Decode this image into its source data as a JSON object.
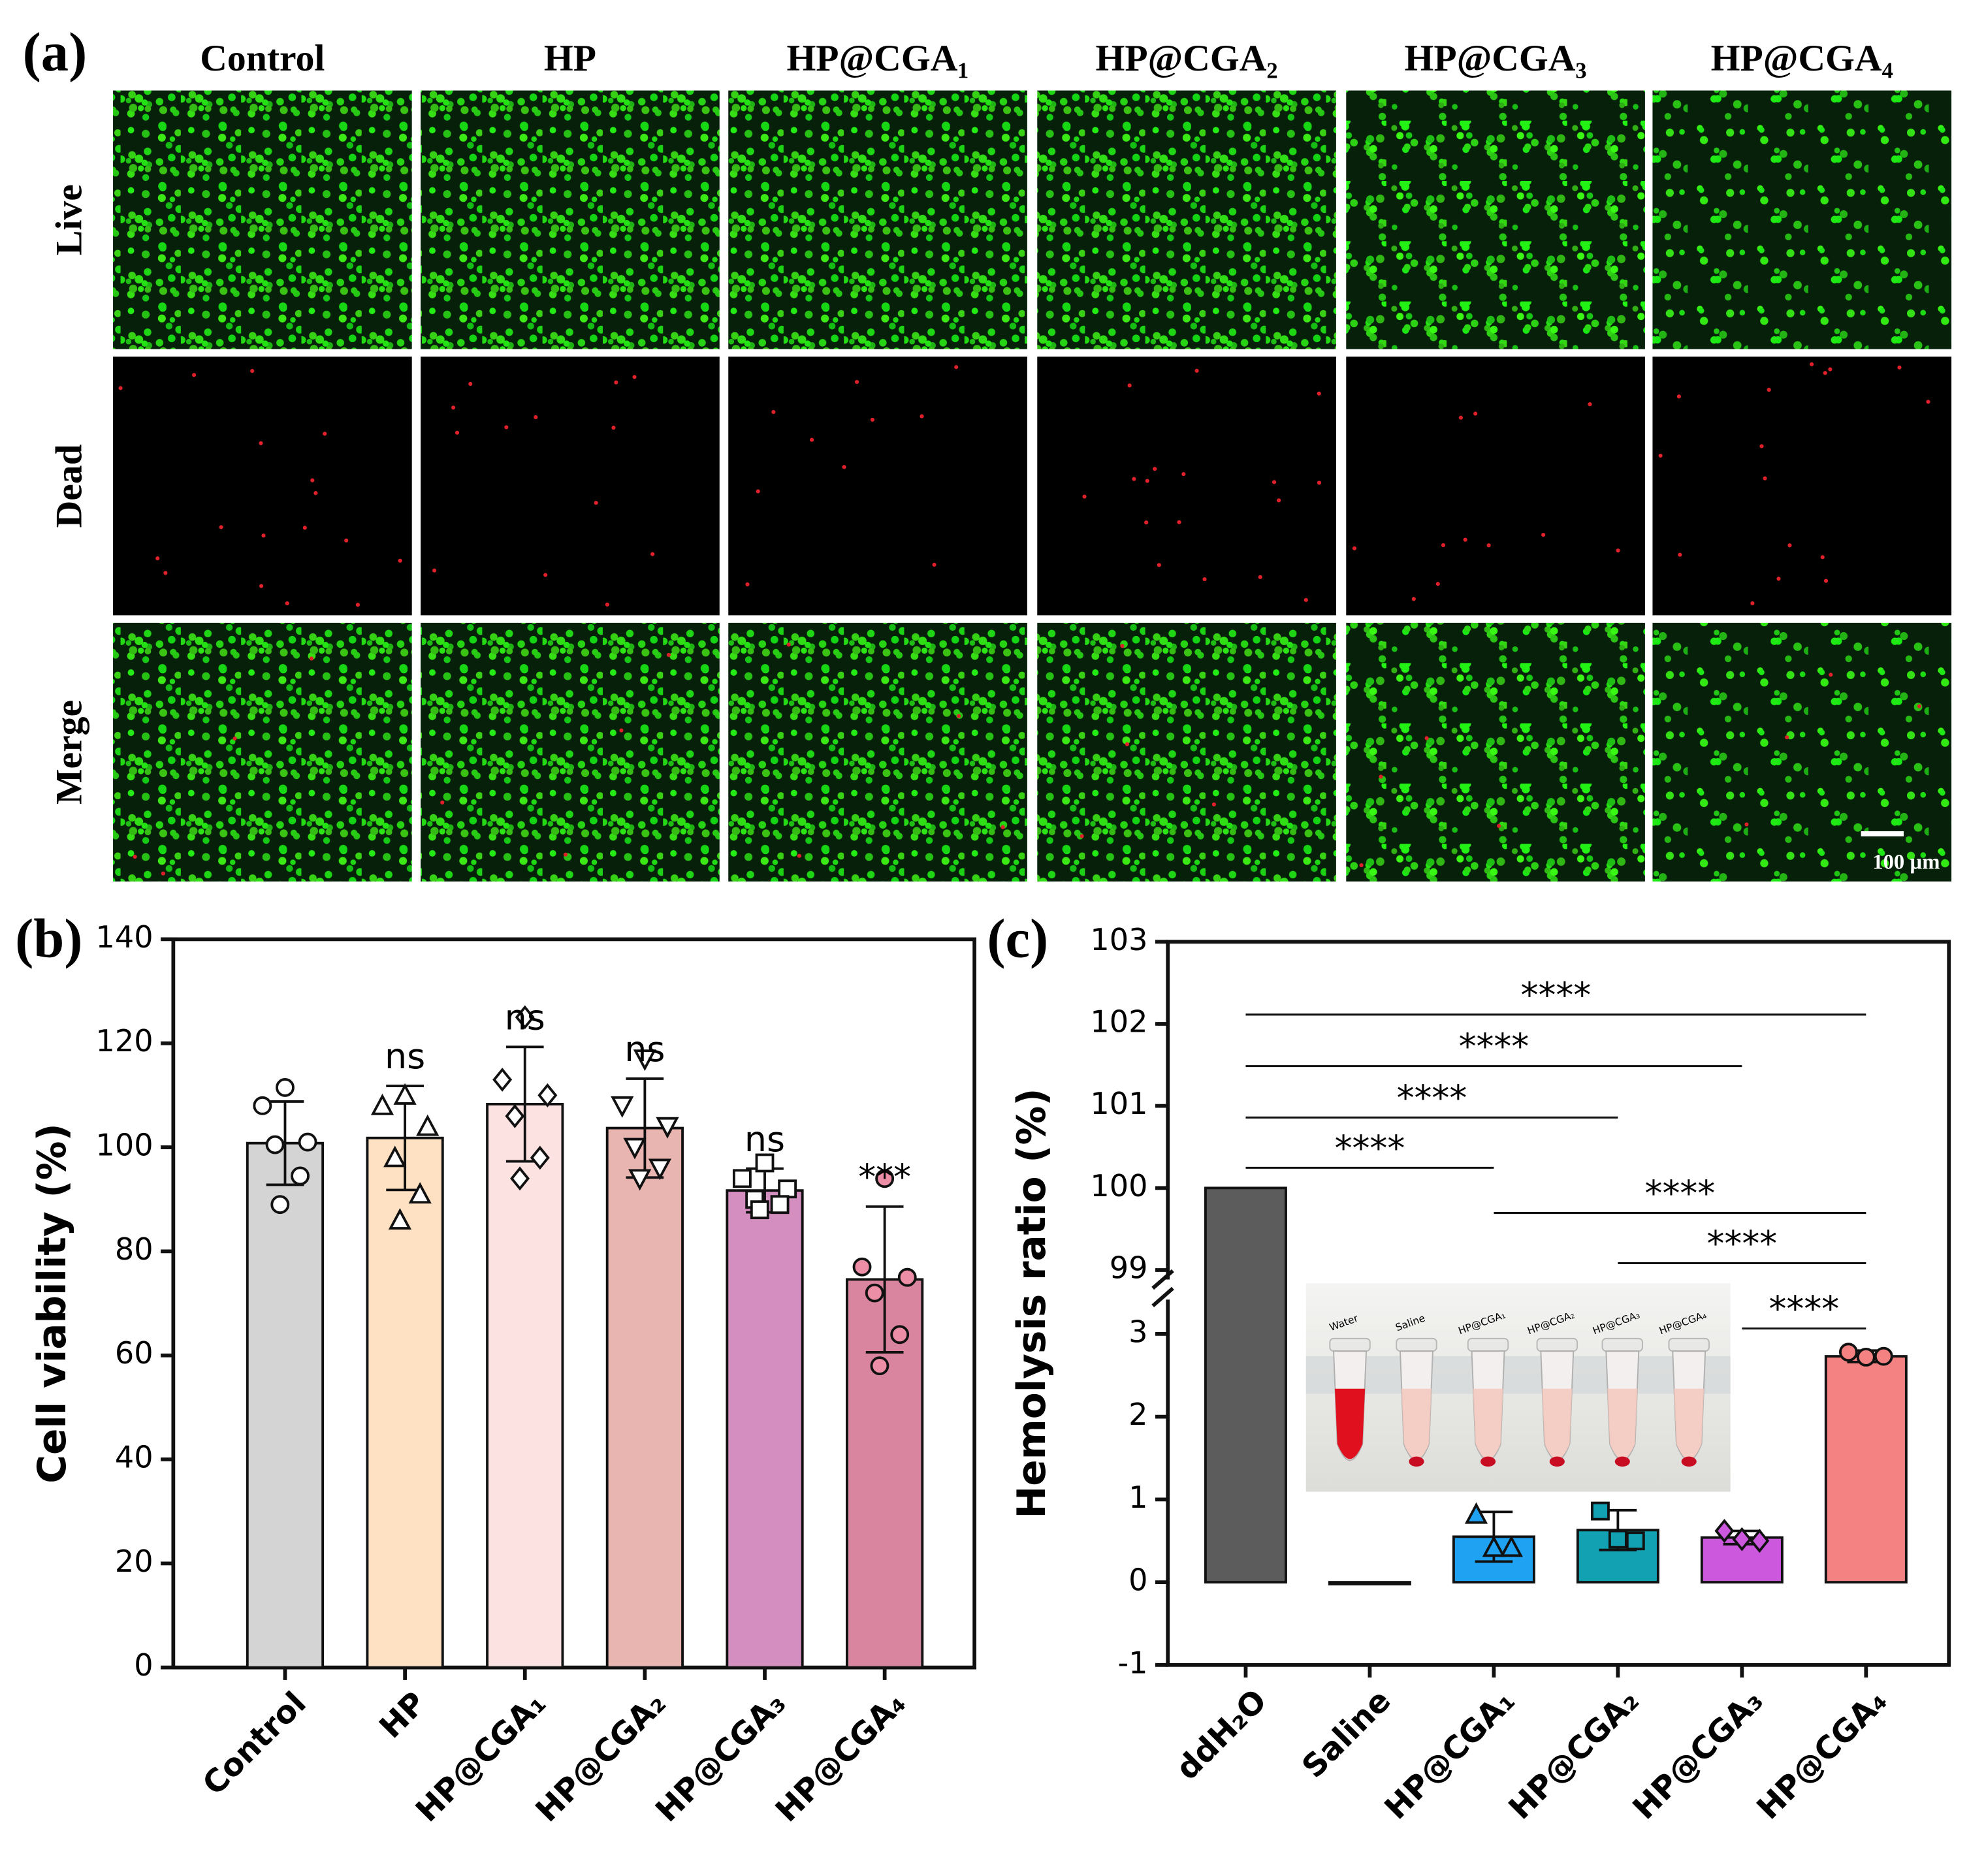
{
  "panel_a": {
    "label": "(a)",
    "columns": [
      "Control",
      "HP",
      "HP@CGA₁",
      "HP@CGA₂",
      "HP@CGA₃",
      "HP@CGA₄"
    ],
    "rows": [
      "Live",
      "Dead",
      "Merge"
    ],
    "scale_bar": "100 µm"
  },
  "chart_data": [
    {
      "type": "bar",
      "panel_label": "(b)",
      "y_label": "Cell viability (%)",
      "categories": [
        "Control",
        "HP",
        "HP@CGA₁",
        "HP@CGA₂",
        "HP@CGA₃",
        "HP@CGA₄"
      ],
      "values": [
        100.8,
        101.8,
        108.3,
        103.7,
        91.7,
        74.6
      ],
      "errors": [
        8,
        10,
        11,
        9.5,
        4.2,
        14
      ],
      "colors": [
        "#d4d4d4",
        "#fde1c2",
        "#fde2e2",
        "#e8b5b1",
        "#d48ec0",
        "#d9859f"
      ],
      "points": [
        [
          111.5,
          108,
          101,
          100.5,
          94.5,
          89
        ],
        [
          110,
          108,
          104,
          98,
          91,
          86
        ],
        [
          125,
          113,
          110,
          106,
          98,
          94
        ],
        [
          117,
          108,
          104,
          100,
          96,
          94
        ],
        [
          97,
          94,
          92,
          90,
          89,
          88
        ],
        [
          94,
          77,
          75,
          72,
          64,
          58
        ]
      ],
      "markers": [
        "circle",
        "triangle",
        "diamond",
        "triangle-down",
        "square",
        "circle"
      ],
      "marker_fills": [
        "#ffffff",
        "#ffffff",
        "#ffffff",
        "#ffffff",
        "#ffffff",
        "#ec8ea6"
      ],
      "annotations": [
        null,
        "ns",
        "ns",
        "ns",
        "ns",
        "***"
      ],
      "ylim": [
        0,
        140
      ],
      "yticks": [
        0,
        20,
        40,
        60,
        80,
        100,
        120,
        140
      ]
    },
    {
      "type": "bar",
      "panel_label": "(c)",
      "y_label": "Hemolysis ratio (%)",
      "categories": [
        "ddH₂O",
        "Saline",
        "HP@CGA₁",
        "HP@CGA₂",
        "HP@CGA₃",
        "HP@CGA₄"
      ],
      "values": [
        100,
        0,
        0.55,
        0.63,
        0.54,
        2.73
      ],
      "errors": [
        null,
        null,
        0.3,
        0.24,
        0.08,
        0.07
      ],
      "colors": [
        "#5c5c5c",
        "#f24444",
        "#1fa2f2",
        "#12a1b2",
        "#cc58de",
        "#f58282"
      ],
      "points": [
        null,
        null,
        [
          0.82,
          0.42,
          0.42
        ],
        [
          0.86,
          0.52,
          0.5
        ],
        [
          0.62,
          0.52,
          0.5
        ],
        [
          2.78,
          2.72,
          2.73
        ]
      ],
      "markers": [
        null,
        null,
        "triangle",
        "square",
        "diamond",
        "circle"
      ],
      "ylim": [
        -1,
        103
      ],
      "axis_break": [
        3.4,
        98.9
      ],
      "yticks": [
        -1,
        0,
        1,
        2,
        3,
        99,
        100,
        101,
        102,
        103
      ],
      "comparisons": [
        {
          "between": [
            0,
            5
          ],
          "label": "****"
        },
        {
          "between": [
            0,
            4
          ],
          "label": "****"
        },
        {
          "between": [
            0,
            3
          ],
          "label": "****"
        },
        {
          "between": [
            0,
            2
          ],
          "label": "****"
        },
        {
          "between": [
            2,
            5
          ],
          "label": "****"
        },
        {
          "between": [
            3,
            5
          ],
          "label": "****"
        },
        {
          "between": [
            4,
            5
          ],
          "label": "****"
        }
      ],
      "inset_labels": [
        "Water",
        "Saline",
        "HP@CGA₁",
        "HP@CGA₂",
        "HP@CGA₃",
        "HP@CGA₄"
      ]
    }
  ]
}
